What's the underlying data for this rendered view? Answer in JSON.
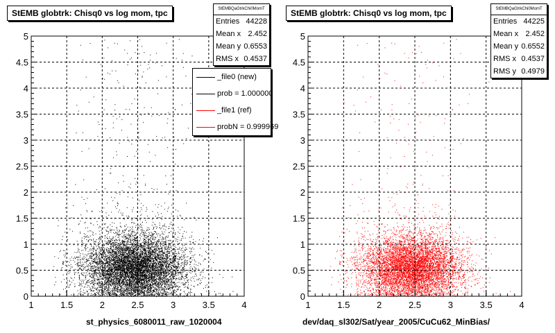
{
  "chart_data": [
    {
      "type": "scatter",
      "title": "StEMB globtrk: Chisq0 vs log mom, tpc",
      "xlabel": "st_physics_6080011_raw_1020004",
      "ylabel": "",
      "xlim": [
        1,
        4
      ],
      "ylim": [
        0,
        5
      ],
      "x_ticks": [
        "1",
        "1.5",
        "2",
        "2.5",
        "3",
        "3.5",
        "4"
      ],
      "y_ticks": [
        "0",
        "0.5",
        "1",
        "1.5",
        "2",
        "2.5",
        "3",
        "3.5",
        "4",
        "4.5",
        "5"
      ],
      "grid": true,
      "color": "#000000",
      "density_center": {
        "x": 2.45,
        "y": 0.55
      },
      "stats": {
        "name": "StEMBQaGtrkChi0MomT",
        "entries_label": "Entries",
        "entries": "44228",
        "meanx_label": "Mean x",
        "meanx": "2.452",
        "meany_label": "Mean y",
        "meany": "0.6553",
        "rmsx_label": "RMS x",
        "rmsx": "0.4537"
      },
      "legend": {
        "placement": "top-right",
        "entries": [
          {
            "label": "_file0 (new)",
            "color": "#000000"
          },
          {
            "label": "prob = 1.000000",
            "color": "#000000"
          },
          {
            "label": "_file1 (ref)",
            "color": "#ff0000"
          },
          {
            "label": "probN = 0.999969",
            "color": "#ff0000"
          }
        ]
      }
    },
    {
      "type": "scatter",
      "title": "StEMB globtrk: Chisq0 vs log mom, tpc",
      "xlabel": "dev/daq_sl302/Sat/year_2005/CuCu62_MinBias/",
      "ylabel": "",
      "xlim": [
        1,
        4
      ],
      "ylim": [
        0,
        5
      ],
      "x_ticks": [
        "1",
        "1.5",
        "2",
        "2.5",
        "3",
        "3.5",
        "4"
      ],
      "y_ticks": [
        "0",
        "0.5",
        "1",
        "1.5",
        "2",
        "2.5",
        "3",
        "3.5",
        "4",
        "4.5",
        "5"
      ],
      "grid": true,
      "color": "#ff0000",
      "density_center": {
        "x": 2.45,
        "y": 0.55
      },
      "stats": {
        "name": "StEMBQaGtrkChi0MomT",
        "entries_label": "Entries",
        "entries": "44225",
        "meanx_label": "Mean x",
        "meanx": "2.452",
        "meany_label": "Mean y",
        "meany": "0.6552",
        "rmsx_label": "RMS x",
        "rmsx": "0.4537",
        "rmsy_label": "RMS y",
        "rmsy": "0.4979"
      }
    }
  ]
}
